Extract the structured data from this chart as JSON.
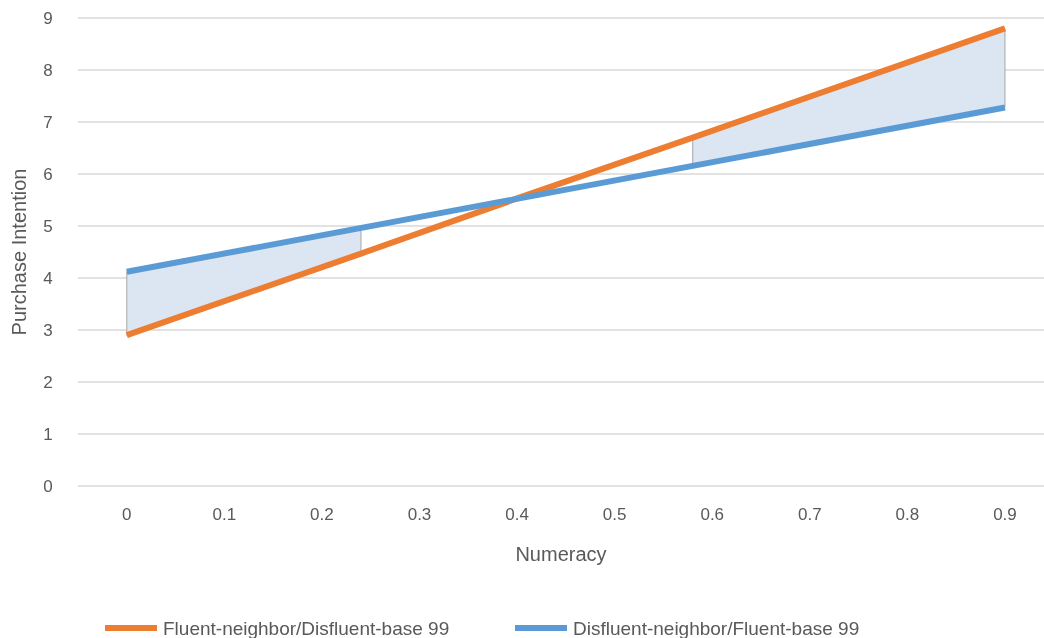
{
  "chart_data": {
    "type": "line",
    "xlabel": "Numeracy",
    "ylabel": "Purchase Intention",
    "xlim": [
      -0.05,
      0.94
    ],
    "xticks": [
      0,
      0.1,
      0.2,
      0.3,
      0.4,
      0.5,
      0.6,
      0.7,
      0.8,
      0.9
    ],
    "ylim": [
      0,
      9
    ],
    "yticks": [
      0,
      1,
      2,
      3,
      4,
      5,
      6,
      7,
      8,
      9
    ],
    "grid": "y",
    "legend": "bottom",
    "series": [
      {
        "name": "Fluent-neighbor/Disfluent-base 99",
        "color": "#ed7d31",
        "x": [
          0,
          0.24,
          0.4,
          0.58,
          0.9
        ],
        "values": [
          2.9,
          4.47,
          5.53,
          6.7,
          8.8
        ],
        "lower": [
          2.9,
          4.47,
          null,
          6.16,
          7.28
        ],
        "upper": [
          4.12,
          4.96,
          null,
          6.7,
          8.8
        ]
      },
      {
        "name": "Disfluent-neighbor/Fluent-base 99",
        "color": "#5b9bd5",
        "x": [
          0,
          0.9
        ],
        "values": [
          4.12,
          7.28
        ]
      }
    ]
  }
}
